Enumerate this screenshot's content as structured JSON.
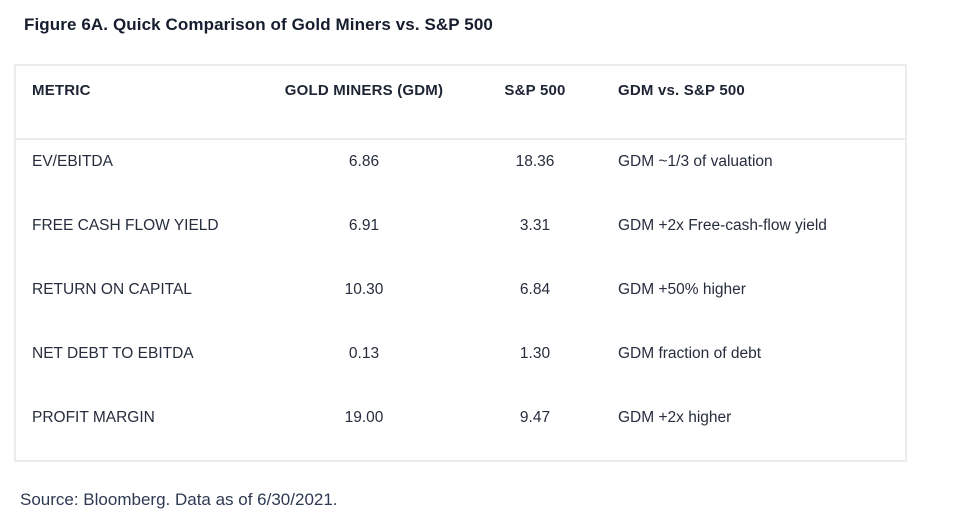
{
  "figure_title": "Figure 6A. Quick Comparison of Gold Miners vs. S&P 500",
  "table": {
    "columns": [
      "METRIC",
      "GOLD MINERS (GDM)",
      "S&P 500",
      "GDM vs. S&P 500"
    ],
    "rows": [
      {
        "metric": "EV/EBITDA",
        "gdm": "6.86",
        "sp500": "18.36",
        "comparison": "GDM ~1/3 of valuation"
      },
      {
        "metric": "FREE CASH FLOW YIELD",
        "gdm": "6.91",
        "sp500": "3.31",
        "comparison": "GDM +2x Free-cash-flow yield"
      },
      {
        "metric": "RETURN ON CAPITAL",
        "gdm": "10.30",
        "sp500": "6.84",
        "comparison": "GDM +50% higher"
      },
      {
        "metric": "NET DEBT TO EBITDA",
        "gdm": "0.13",
        "sp500": "1.30",
        "comparison": "GDM fraction of debt"
      },
      {
        "metric": "PROFIT MARGIN",
        "gdm": "19.00",
        "sp500": "9.47",
        "comparison": "GDM +2x higher"
      }
    ]
  },
  "source_note": "Source: Bloomberg. Data as of 6/30/2021.",
  "colors": {
    "title_text": "#161d2e",
    "header_text": "#1d2434",
    "body_text": "#262d3d",
    "source_text": "#2e3a52",
    "table_border": "#ececec",
    "background": "#ffffff"
  }
}
